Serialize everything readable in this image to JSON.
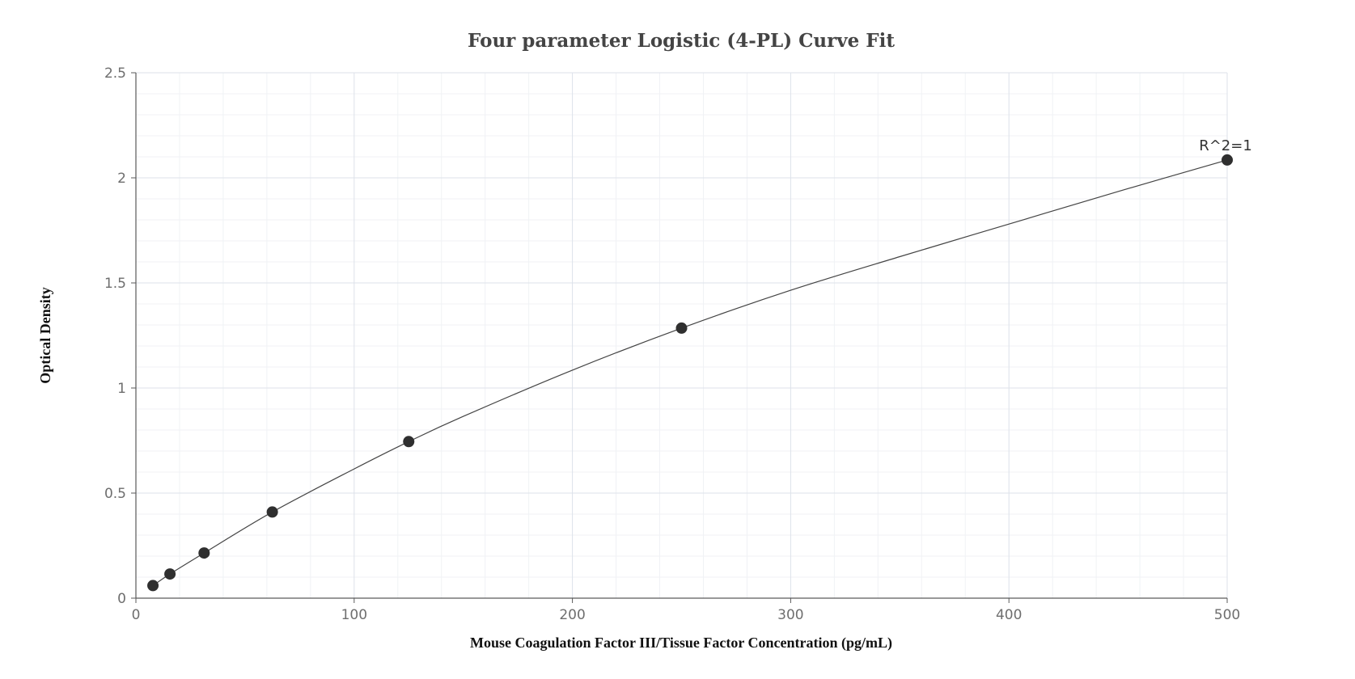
{
  "chart_data": {
    "type": "scatter",
    "title": "Four parameter Logistic (4-PL) Curve Fit",
    "xlabel": "Mouse Coagulation Factor III/Tissue Factor Concentration (pg/mL)",
    "ylabel": "Optical Density",
    "xlim": [
      0,
      500
    ],
    "ylim": [
      0,
      2.5
    ],
    "x_ticks": [
      0,
      100,
      200,
      300,
      400,
      500
    ],
    "y_ticks": [
      0,
      0.5,
      1,
      1.5,
      2,
      2.5
    ],
    "x_tick_labels": [
      "0",
      "100",
      "200",
      "300",
      "400",
      "500"
    ],
    "y_tick_labels": [
      "0",
      "0.5",
      "1",
      "1.5",
      "2",
      "2.5"
    ],
    "grid": true,
    "points": [
      {
        "x": 7.8,
        "y": 0.06
      },
      {
        "x": 15.6,
        "y": 0.115
      },
      {
        "x": 31.25,
        "y": 0.215
      },
      {
        "x": 62.5,
        "y": 0.41
      },
      {
        "x": 125,
        "y": 0.745
      },
      {
        "x": 250,
        "y": 1.285
      },
      {
        "x": 500,
        "y": 2.085
      }
    ],
    "fit_curve": {
      "model": "4PL",
      "points": [
        {
          "x": 7.8,
          "y": 0.06
        },
        {
          "x": 15.6,
          "y": 0.115
        },
        {
          "x": 31.25,
          "y": 0.215
        },
        {
          "x": 62.5,
          "y": 0.41
        },
        {
          "x": 100,
          "y": 0.615
        },
        {
          "x": 125,
          "y": 0.745
        },
        {
          "x": 150,
          "y": 0.865
        },
        {
          "x": 200,
          "y": 1.085
        },
        {
          "x": 250,
          "y": 1.285
        },
        {
          "x": 300,
          "y": 1.465
        },
        {
          "x": 350,
          "y": 1.625
        },
        {
          "x": 400,
          "y": 1.78
        },
        {
          "x": 450,
          "y": 1.935
        },
        {
          "x": 500,
          "y": 2.085
        }
      ]
    },
    "annotation": {
      "text": "R^2=1",
      "x": 500,
      "y": 2.085
    },
    "colors": {
      "points": "#2f2f2f",
      "curve": "#444444",
      "grid": "#dde2ea",
      "axis": "#5a5a5a"
    }
  }
}
